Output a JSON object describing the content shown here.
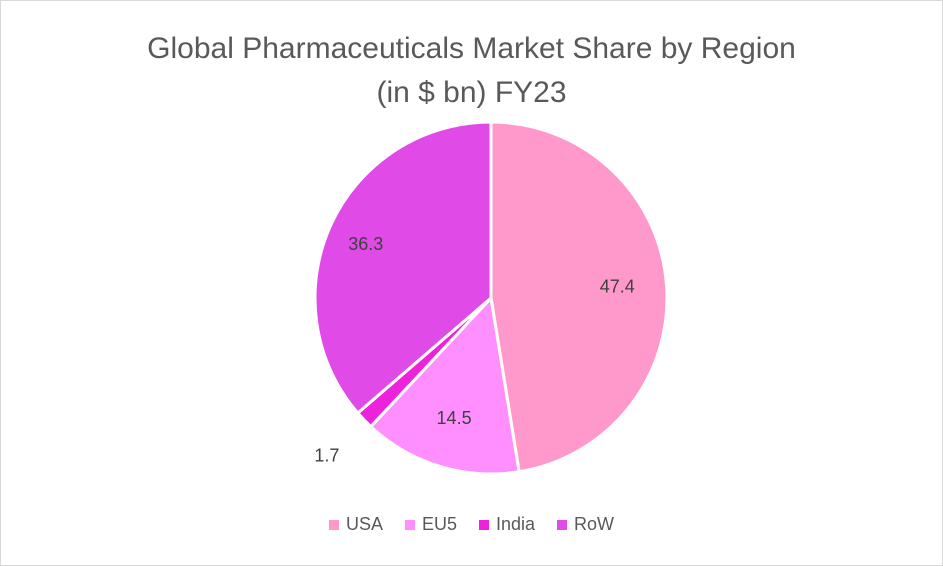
{
  "chart_data": {
    "type": "pie",
    "title": "Global Pharmaceuticals Market Share by Region",
    "subtitle": "(in $ bn) FY23",
    "categories": [
      "USA",
      "EU5",
      "India",
      "RoW"
    ],
    "values": [
      47.4,
      14.5,
      1.7,
      36.3
    ],
    "labels": [
      "47.4",
      "14.5",
      "1.7",
      "36.3"
    ],
    "colors": [
      "#ff99cc",
      "#ff8fff",
      "#ee22dd",
      "#e04ae6"
    ],
    "legend_position": "bottom"
  }
}
